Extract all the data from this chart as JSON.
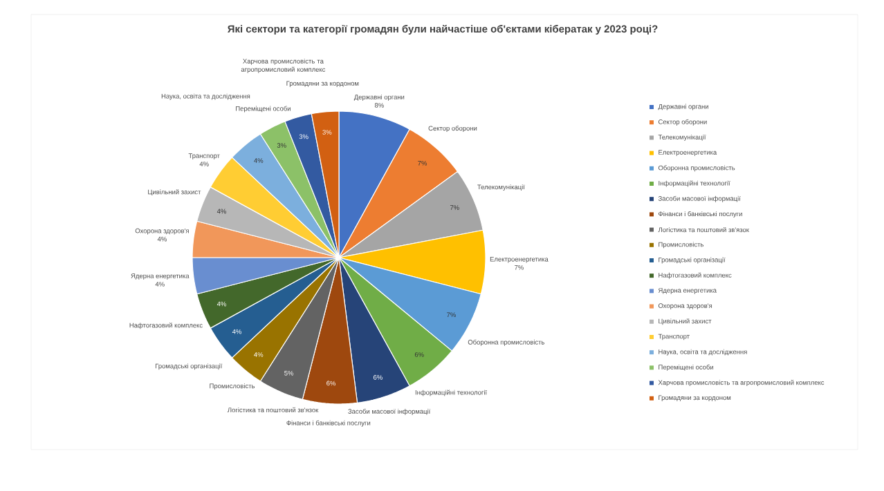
{
  "chart_data": {
    "type": "pie",
    "title": "Які сектори та категорії громадян були найчастіше об'єктами кібератак у 2023 році?",
    "categories": [
      "Державні органи",
      "Сектор оборони",
      "Телекомунікації",
      "Електроенергетика",
      "Оборонна промисловість",
      "Інформаційні технології",
      "Засоби масової інформації",
      "Фінанси і банківські послуги",
      "Логістика та поштовий зв'язок",
      "Промисловість",
      "Громадські організації",
      "Нафтогазовий комплекс",
      "Ядерна енергетика",
      "Охорона здоров'я",
      "Цивільний захист",
      "Транспорт",
      "Наука, освіта та дослідження",
      "Переміщені особи",
      "Харчова промисловість та агропромисловий комплекс",
      "Громадяни за кордоном"
    ],
    "values": [
      8,
      7,
      7,
      7,
      7,
      6,
      6,
      6,
      5,
      4,
      4,
      4,
      4,
      4,
      4,
      4,
      4,
      3,
      3,
      3
    ],
    "value_labels": [
      "8%",
      "7%",
      "7%",
      "7%",
      "7%",
      "6%",
      "6%",
      "6%",
      "5%",
      "4%",
      "4%",
      "4%",
      "4%",
      "4%",
      "4%",
      "4%",
      "4%",
      "3%",
      "3%",
      "3%"
    ],
    "colors": [
      "#4472c4",
      "#ed7d31",
      "#a5a5a5",
      "#ffc000",
      "#5b9bd5",
      "#70ad47",
      "#264478",
      "#9e480e",
      "#636363",
      "#997300",
      "#255e91",
      "#43682b",
      "#698ed0",
      "#f1975a",
      "#b7b7b7",
      "#ffcd33",
      "#7cafdd",
      "#8cc168",
      "#335aa1",
      "#d26012"
    ],
    "legend": "right"
  }
}
